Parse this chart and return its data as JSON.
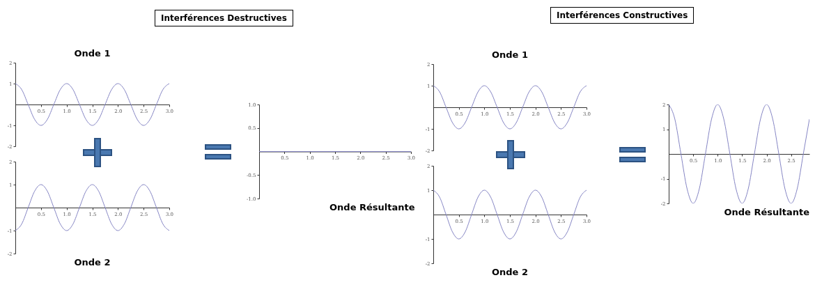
{
  "chart_data": [
    {
      "type": "line",
      "title": "Onde 1",
      "annotations": [
        "Interférences Destructives"
      ],
      "x": [
        0,
        0.125,
        0.25,
        0.375,
        0.5,
        0.625,
        0.75,
        0.875,
        1,
        1.125,
        1.25,
        1.375,
        1.5,
        1.625,
        1.75,
        1.875,
        2,
        2.125,
        2.25,
        2.375,
        2.5,
        2.625,
        2.75,
        2.875,
        3
      ],
      "series": [
        {
          "color": "#8585c4",
          "values": [
            1,
            0.71,
            0,
            -0.71,
            -1,
            -0.71,
            0,
            0.71,
            1,
            0.71,
            0,
            -0.71,
            -1,
            -0.71,
            0,
            0.71,
            1,
            0.71,
            0,
            -0.71,
            -1,
            -0.71,
            0,
            0.71,
            1
          ]
        }
      ],
      "xlim": [
        0,
        3
      ],
      "ylim": [
        -2,
        2
      ],
      "xticks": [
        0.5,
        {
          "value": 1,
          "label": "1.0"
        },
        1.5,
        {
          "value": 2,
          "label": "2.0"
        },
        2.5,
        {
          "value": 3,
          "label": "3.0"
        }
      ],
      "yticks": [
        -2,
        -1,
        1,
        2
      ]
    },
    {
      "type": "line",
      "title": "Onde 2",
      "x": [
        0,
        0.125,
        0.25,
        0.375,
        0.5,
        0.625,
        0.75,
        0.875,
        1,
        1.125,
        1.25,
        1.375,
        1.5,
        1.625,
        1.75,
        1.875,
        2,
        2.125,
        2.25,
        2.375,
        2.5,
        2.625,
        2.75,
        2.875,
        3
      ],
      "series": [
        {
          "color": "#8585c4",
          "values": [
            -1,
            -0.71,
            0,
            0.71,
            1,
            0.71,
            0,
            -0.71,
            -1,
            -0.71,
            0,
            0.71,
            1,
            0.71,
            0,
            -0.71,
            -1,
            -0.71,
            0,
            0.71,
            1,
            0.71,
            0,
            -0.71,
            -1
          ]
        }
      ],
      "xlim": [
        0,
        3
      ],
      "ylim": [
        -2,
        2
      ],
      "xticks": [
        0.5,
        {
          "value": 1,
          "label": "1.0"
        },
        1.5,
        {
          "value": 2,
          "label": "2.0"
        },
        2.5,
        {
          "value": 3,
          "label": "3.0"
        }
      ],
      "yticks": [
        -2,
        -1,
        1,
        2
      ]
    },
    {
      "type": "line",
      "title": "Onde Résultante",
      "x": [
        0,
        0.125,
        0.25,
        0.375,
        0.5,
        0.625,
        0.75,
        0.875,
        1,
        1.125,
        1.25,
        1.375,
        1.5,
        1.625,
        1.75,
        1.875,
        2,
        2.125,
        2.25,
        2.375,
        2.5,
        2.625,
        2.75,
        2.875,
        3
      ],
      "series": [
        {
          "color": "#8585c4",
          "values": [
            0,
            0,
            0,
            0,
            0,
            0,
            0,
            0,
            0,
            0,
            0,
            0,
            0,
            0,
            0,
            0,
            0,
            0,
            0,
            0,
            0,
            0,
            0,
            0,
            0
          ]
        }
      ],
      "xlim": [
        0,
        3
      ],
      "ylim": [
        -1,
        1
      ],
      "xticks": [
        0.5,
        {
          "value": 1,
          "label": "1.0"
        },
        1.5,
        {
          "value": 2,
          "label": "2.0"
        },
        2.5,
        {
          "value": 3,
          "label": "3.0"
        }
      ],
      "yticks": [
        {
          "value": -1,
          "label": "-1.0"
        },
        -0.5,
        0.5,
        {
          "value": 1,
          "label": "1.0"
        }
      ]
    },
    {
      "type": "line",
      "title": "Onde 1",
      "annotations": [
        "Interférences Constructives"
      ],
      "x": [
        0,
        0.125,
        0.25,
        0.375,
        0.5,
        0.625,
        0.75,
        0.875,
        1,
        1.125,
        1.25,
        1.375,
        1.5,
        1.625,
        1.75,
        1.875,
        2,
        2.125,
        2.25,
        2.375,
        2.5,
        2.625,
        2.75,
        2.875,
        3
      ],
      "series": [
        {
          "color": "#8585c4",
          "values": [
            1,
            0.71,
            0,
            -0.71,
            -1,
            -0.71,
            0,
            0.71,
            1,
            0.71,
            0,
            -0.71,
            -1,
            -0.71,
            0,
            0.71,
            1,
            0.71,
            0,
            -0.71,
            -1,
            -0.71,
            0,
            0.71,
            1
          ]
        }
      ],
      "xlim": [
        0,
        3
      ],
      "ylim": [
        -2,
        2
      ],
      "xticks": [
        0.5,
        {
          "value": 1,
          "label": "1.0"
        },
        1.5,
        {
          "value": 2,
          "label": "2.0"
        },
        2.5,
        {
          "value": 3,
          "label": "3.0"
        }
      ],
      "yticks": [
        -2,
        -1,
        1,
        2
      ]
    },
    {
      "type": "line",
      "title": "Onde 2",
      "x": [
        0,
        0.125,
        0.25,
        0.375,
        0.5,
        0.625,
        0.75,
        0.875,
        1,
        1.125,
        1.25,
        1.375,
        1.5,
        1.625,
        1.75,
        1.875,
        2,
        2.125,
        2.25,
        2.375,
        2.5,
        2.625,
        2.75,
        2.875,
        3
      ],
      "series": [
        {
          "color": "#8585c4",
          "values": [
            1,
            0.71,
            0,
            -0.71,
            -1,
            -0.71,
            0,
            0.71,
            1,
            0.71,
            0,
            -0.71,
            -1,
            -0.71,
            0,
            0.71,
            1,
            0.71,
            0,
            -0.71,
            -1,
            -0.71,
            0,
            0.71,
            1
          ]
        }
      ],
      "xlim": [
        0,
        3
      ],
      "ylim": [
        -2,
        2
      ],
      "xticks": [
        0.5,
        {
          "value": 1,
          "label": "1.0"
        },
        1.5,
        {
          "value": 2,
          "label": "2.0"
        },
        2.5,
        {
          "value": 3,
          "label": "3.0"
        }
      ],
      "yticks": [
        -2,
        -1,
        1,
        2
      ]
    },
    {
      "type": "line",
      "title": "Onde Résultante",
      "x": [
        0,
        0.125,
        0.25,
        0.375,
        0.5,
        0.625,
        0.75,
        0.875,
        1,
        1.125,
        1.25,
        1.375,
        1.5,
        1.625,
        1.75,
        1.875,
        2,
        2.125,
        2.25,
        2.375,
        2.5,
        2.625,
        2.75,
        2.875
      ],
      "series": [
        {
          "color": "#8585c4",
          "values": [
            2,
            1.41,
            0,
            -1.41,
            -2,
            -1.41,
            0,
            1.41,
            2,
            1.41,
            0,
            -1.41,
            -2,
            -1.41,
            0,
            1.41,
            2,
            1.41,
            0,
            -1.41,
            -2,
            -1.41,
            0,
            1.41
          ]
        }
      ],
      "xlim": [
        0,
        2.875
      ],
      "ylim": [
        -2,
        2
      ],
      "xticks": [
        0.5,
        {
          "value": 1,
          "label": "1.0"
        },
        1.5,
        {
          "value": 2,
          "label": "2.0"
        },
        2.5
      ],
      "yticks": [
        -2,
        -1,
        1,
        2
      ]
    }
  ]
}
